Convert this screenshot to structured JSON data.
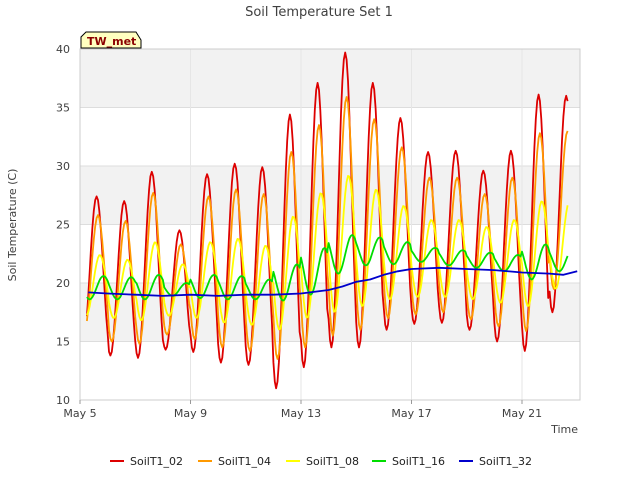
{
  "chart_data": {
    "type": "line",
    "title": "Soil Temperature Set 1",
    "xlabel": "Time",
    "ylabel": "Soil Temperature (C)",
    "badge": "TW_met",
    "ylim": [
      10,
      40
    ],
    "yticks": [
      10,
      15,
      20,
      25,
      30,
      35,
      40
    ],
    "xticks": [
      {
        "day": 5,
        "label": "May 5"
      },
      {
        "day": 9,
        "label": "May 9"
      },
      {
        "day": 13,
        "label": "May 13"
      },
      {
        "day": 17,
        "label": "May 17"
      },
      {
        "day": 21,
        "label": "May 21"
      }
    ],
    "xlim_days": [
      5,
      23.1
    ],
    "grid": true,
    "legend_position": "bottom",
    "series": [
      {
        "name": "SoilT1_02",
        "color": "#dd0000",
        "daily_max": [
          27.4,
          27.0,
          29.5,
          24.5,
          29.3,
          30.2,
          29.9,
          34.4,
          37.1,
          39.7,
          37.1,
          34.1,
          31.2,
          31.3,
          29.6,
          31.3,
          36.1,
          36.0
        ],
        "daily_min": [
          14.5,
          13.8,
          13.6,
          14.3,
          14.1,
          13.2,
          13.0,
          11.0,
          12.8,
          14.5,
          14.5,
          16.0,
          16.5,
          16.6,
          16.0,
          15.0,
          14.2,
          17.5
        ]
      },
      {
        "name": "SoilT1_04",
        "color": "#ff9900",
        "daily_max": [
          25.8,
          25.3,
          27.7,
          23.3,
          27.4,
          28.0,
          27.6,
          31.2,
          33.5,
          35.9,
          34.0,
          31.6,
          29.0,
          29.0,
          27.6,
          29.0,
          32.8,
          33.0
        ],
        "daily_min": [
          15.8,
          15.0,
          14.8,
          15.6,
          15.2,
          14.5,
          14.2,
          13.5,
          14.5,
          15.5,
          16.0,
          17.0,
          17.3,
          17.5,
          16.9,
          16.3,
          15.9,
          19.5
        ]
      },
      {
        "name": "SoilT1_08",
        "color": "#ffff00",
        "daily_max": [
          22.4,
          22.0,
          23.5,
          21.6,
          23.5,
          23.8,
          23.2,
          25.7,
          27.7,
          29.2,
          28.0,
          26.6,
          25.4,
          25.4,
          24.8,
          25.4,
          27.0,
          27.0
        ],
        "daily_min": [
          17.2,
          17.0,
          16.8,
          17.2,
          17.0,
          16.6,
          16.4,
          16.0,
          17.0,
          17.5,
          18.0,
          18.6,
          18.8,
          18.8,
          18.6,
          18.3,
          18.0,
          19.5
        ]
      },
      {
        "name": "SoilT1_16",
        "color": "#00dd00",
        "daily_max": [
          20.6,
          20.5,
          20.7,
          20.0,
          20.7,
          20.6,
          20.3,
          21.6,
          23.0,
          24.1,
          23.9,
          23.5,
          23.0,
          22.8,
          22.6,
          22.4,
          23.3,
          23.0
        ],
        "daily_min": [
          18.6,
          18.6,
          18.6,
          18.9,
          18.7,
          18.6,
          18.6,
          18.5,
          19.0,
          20.8,
          21.5,
          21.6,
          21.8,
          21.5,
          21.3,
          21.0,
          20.3,
          21.0
        ]
      },
      {
        "name": "SoilT1_32",
        "color": "#0000cc",
        "x_days": [
          5.3,
          6,
          7,
          8,
          9,
          10,
          11,
          12,
          13,
          14,
          14.5,
          15,
          15.5,
          16,
          16.5,
          17,
          18,
          19,
          20,
          21,
          22,
          22.5,
          23
        ],
        "values": [
          19.2,
          19.1,
          19.0,
          18.9,
          19.0,
          18.9,
          19.0,
          19.0,
          19.1,
          19.4,
          19.7,
          20.1,
          20.3,
          20.7,
          21.0,
          21.2,
          21.3,
          21.2,
          21.1,
          20.9,
          20.8,
          20.7,
          21.0
        ]
      }
    ]
  }
}
